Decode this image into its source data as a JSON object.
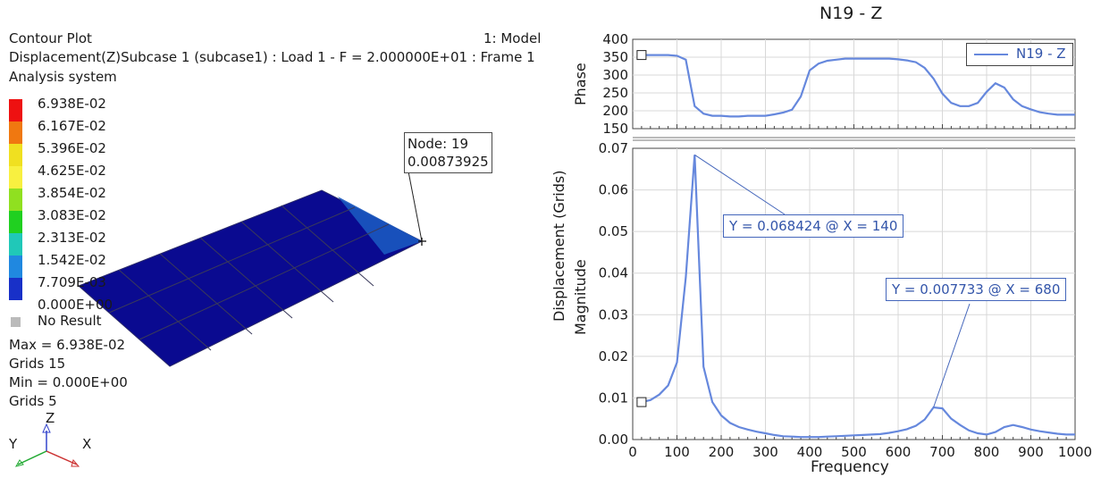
{
  "left_panel": {
    "plot_type": "Contour Plot",
    "result_line": "Displacement(Z)Subcase 1 (subcase1) : Load 1 - F = 2.000000E+01 : Frame 1",
    "system": "Analysis system",
    "model_label": "1: Model",
    "legend": [
      {
        "label": "6.938E-02",
        "color": "#ee1111"
      },
      {
        "label": "6.167E-02",
        "color": "#f07810"
      },
      {
        "label": "5.396E-02",
        "color": "#f0e020"
      },
      {
        "label": "4.625E-02",
        "color": "#f8f040"
      },
      {
        "label": "3.854E-02",
        "color": "#90e020"
      },
      {
        "label": "3.083E-02",
        "color": "#20d020"
      },
      {
        "label": "2.313E-02",
        "color": "#20c8b8"
      },
      {
        "label": "1.542E-02",
        "color": "#2088e0"
      },
      {
        "label": "7.709E-03",
        "color": "#1830c8"
      },
      {
        "label": "0.000E+00",
        "color": "#0a0a90"
      }
    ],
    "no_result": {
      "label": "No Result",
      "color": "#bbbbbb"
    },
    "stats": {
      "max_line": "Max =  6.938E-02",
      "max_grids": "Grids 15",
      "min_line": "Min =  0.000E+00",
      "min_grids": "Grids 5"
    },
    "node_callout": {
      "line1": "Node: 19",
      "line2": "0.00873925"
    },
    "triad": {
      "z": "Z",
      "y": "Y",
      "x": "X"
    }
  },
  "right_panel": {
    "title": "N19 - Z",
    "legend_entry": "N19 - Z",
    "phase_ylabel": "Phase",
    "mag_ylabel_line1": "Displacement (Grids)",
    "mag_ylabel_line2": "Magnitude",
    "xlabel": "Frequency",
    "callout1": "Y = 0.068424 @ X = 140",
    "callout2": "Y = 0.007733 @ X = 680"
  },
  "chart_data": [
    {
      "type": "line",
      "ylabel": "Phase",
      "xlim": [
        0,
        1000
      ],
      "ylim": [
        150,
        400
      ],
      "yticks": [
        "400",
        "350",
        "300",
        "250",
        "200",
        "150"
      ],
      "grid": true,
      "legend": "top-right",
      "series": [
        {
          "name": "N19 - Z",
          "color": "#6688dd",
          "x": [
            20,
            40,
            60,
            80,
            100,
            120,
            140,
            160,
            180,
            200,
            220,
            240,
            260,
            280,
            300,
            320,
            340,
            360,
            380,
            400,
            420,
            440,
            460,
            480,
            500,
            520,
            540,
            560,
            580,
            600,
            620,
            640,
            660,
            680,
            700,
            720,
            740,
            760,
            780,
            800,
            820,
            840,
            860,
            880,
            900,
            920,
            940,
            960,
            980,
            1000
          ],
          "y": [
            356,
            356,
            356,
            356,
            354,
            343,
            213,
            192,
            186,
            186,
            184,
            184,
            186,
            186,
            186,
            190,
            195,
            203,
            240,
            313,
            332,
            340,
            343,
            346,
            346,
            346,
            346,
            346,
            346,
            344,
            341,
            336,
            320,
            290,
            248,
            222,
            213,
            213,
            222,
            253,
            277,
            265,
            232,
            213,
            204,
            196,
            192,
            189,
            189,
            189
          ]
        }
      ]
    },
    {
      "type": "line",
      "xlabel": "Frequency",
      "ylabel": "Displacement (Grids) Magnitude",
      "xlim": [
        0,
        1000
      ],
      "ylim": [
        0,
        0.07
      ],
      "xticks": [
        "0",
        "100",
        "200",
        "300",
        "400",
        "500",
        "600",
        "700",
        "800",
        "900",
        "1000"
      ],
      "yticks": [
        "0.07",
        "0.06",
        "0.05",
        "0.04",
        "0.03",
        "0.02",
        "0.01",
        "0.00"
      ],
      "grid": true,
      "series": [
        {
          "name": "N19 - Z",
          "color": "#6688dd",
          "x": [
            20,
            40,
            60,
            80,
            100,
            120,
            140,
            160,
            180,
            200,
            220,
            240,
            260,
            280,
            300,
            320,
            340,
            360,
            380,
            400,
            420,
            440,
            460,
            480,
            500,
            520,
            540,
            560,
            580,
            600,
            620,
            640,
            660,
            680,
            700,
            720,
            740,
            760,
            780,
            800,
            820,
            840,
            860,
            880,
            900,
            920,
            940,
            960,
            980,
            1000
          ],
          "y": [
            0.009,
            0.0095,
            0.0108,
            0.013,
            0.0185,
            0.039,
            0.068424,
            0.0175,
            0.009,
            0.0058,
            0.004,
            0.003,
            0.0024,
            0.0019,
            0.0015,
            0.0011,
            0.0008,
            0.0007,
            0.0006,
            0.0006,
            0.0006,
            0.0007,
            0.0008,
            0.0009,
            0.001,
            0.0011,
            0.0012,
            0.0013,
            0.0016,
            0.002,
            0.0025,
            0.0033,
            0.0048,
            0.007733,
            0.0075,
            0.005,
            0.0035,
            0.0022,
            0.0015,
            0.0012,
            0.0018,
            0.003,
            0.0035,
            0.003,
            0.0024,
            0.002,
            0.0017,
            0.0014,
            0.0012,
            0.0012
          ]
        }
      ]
    }
  ]
}
